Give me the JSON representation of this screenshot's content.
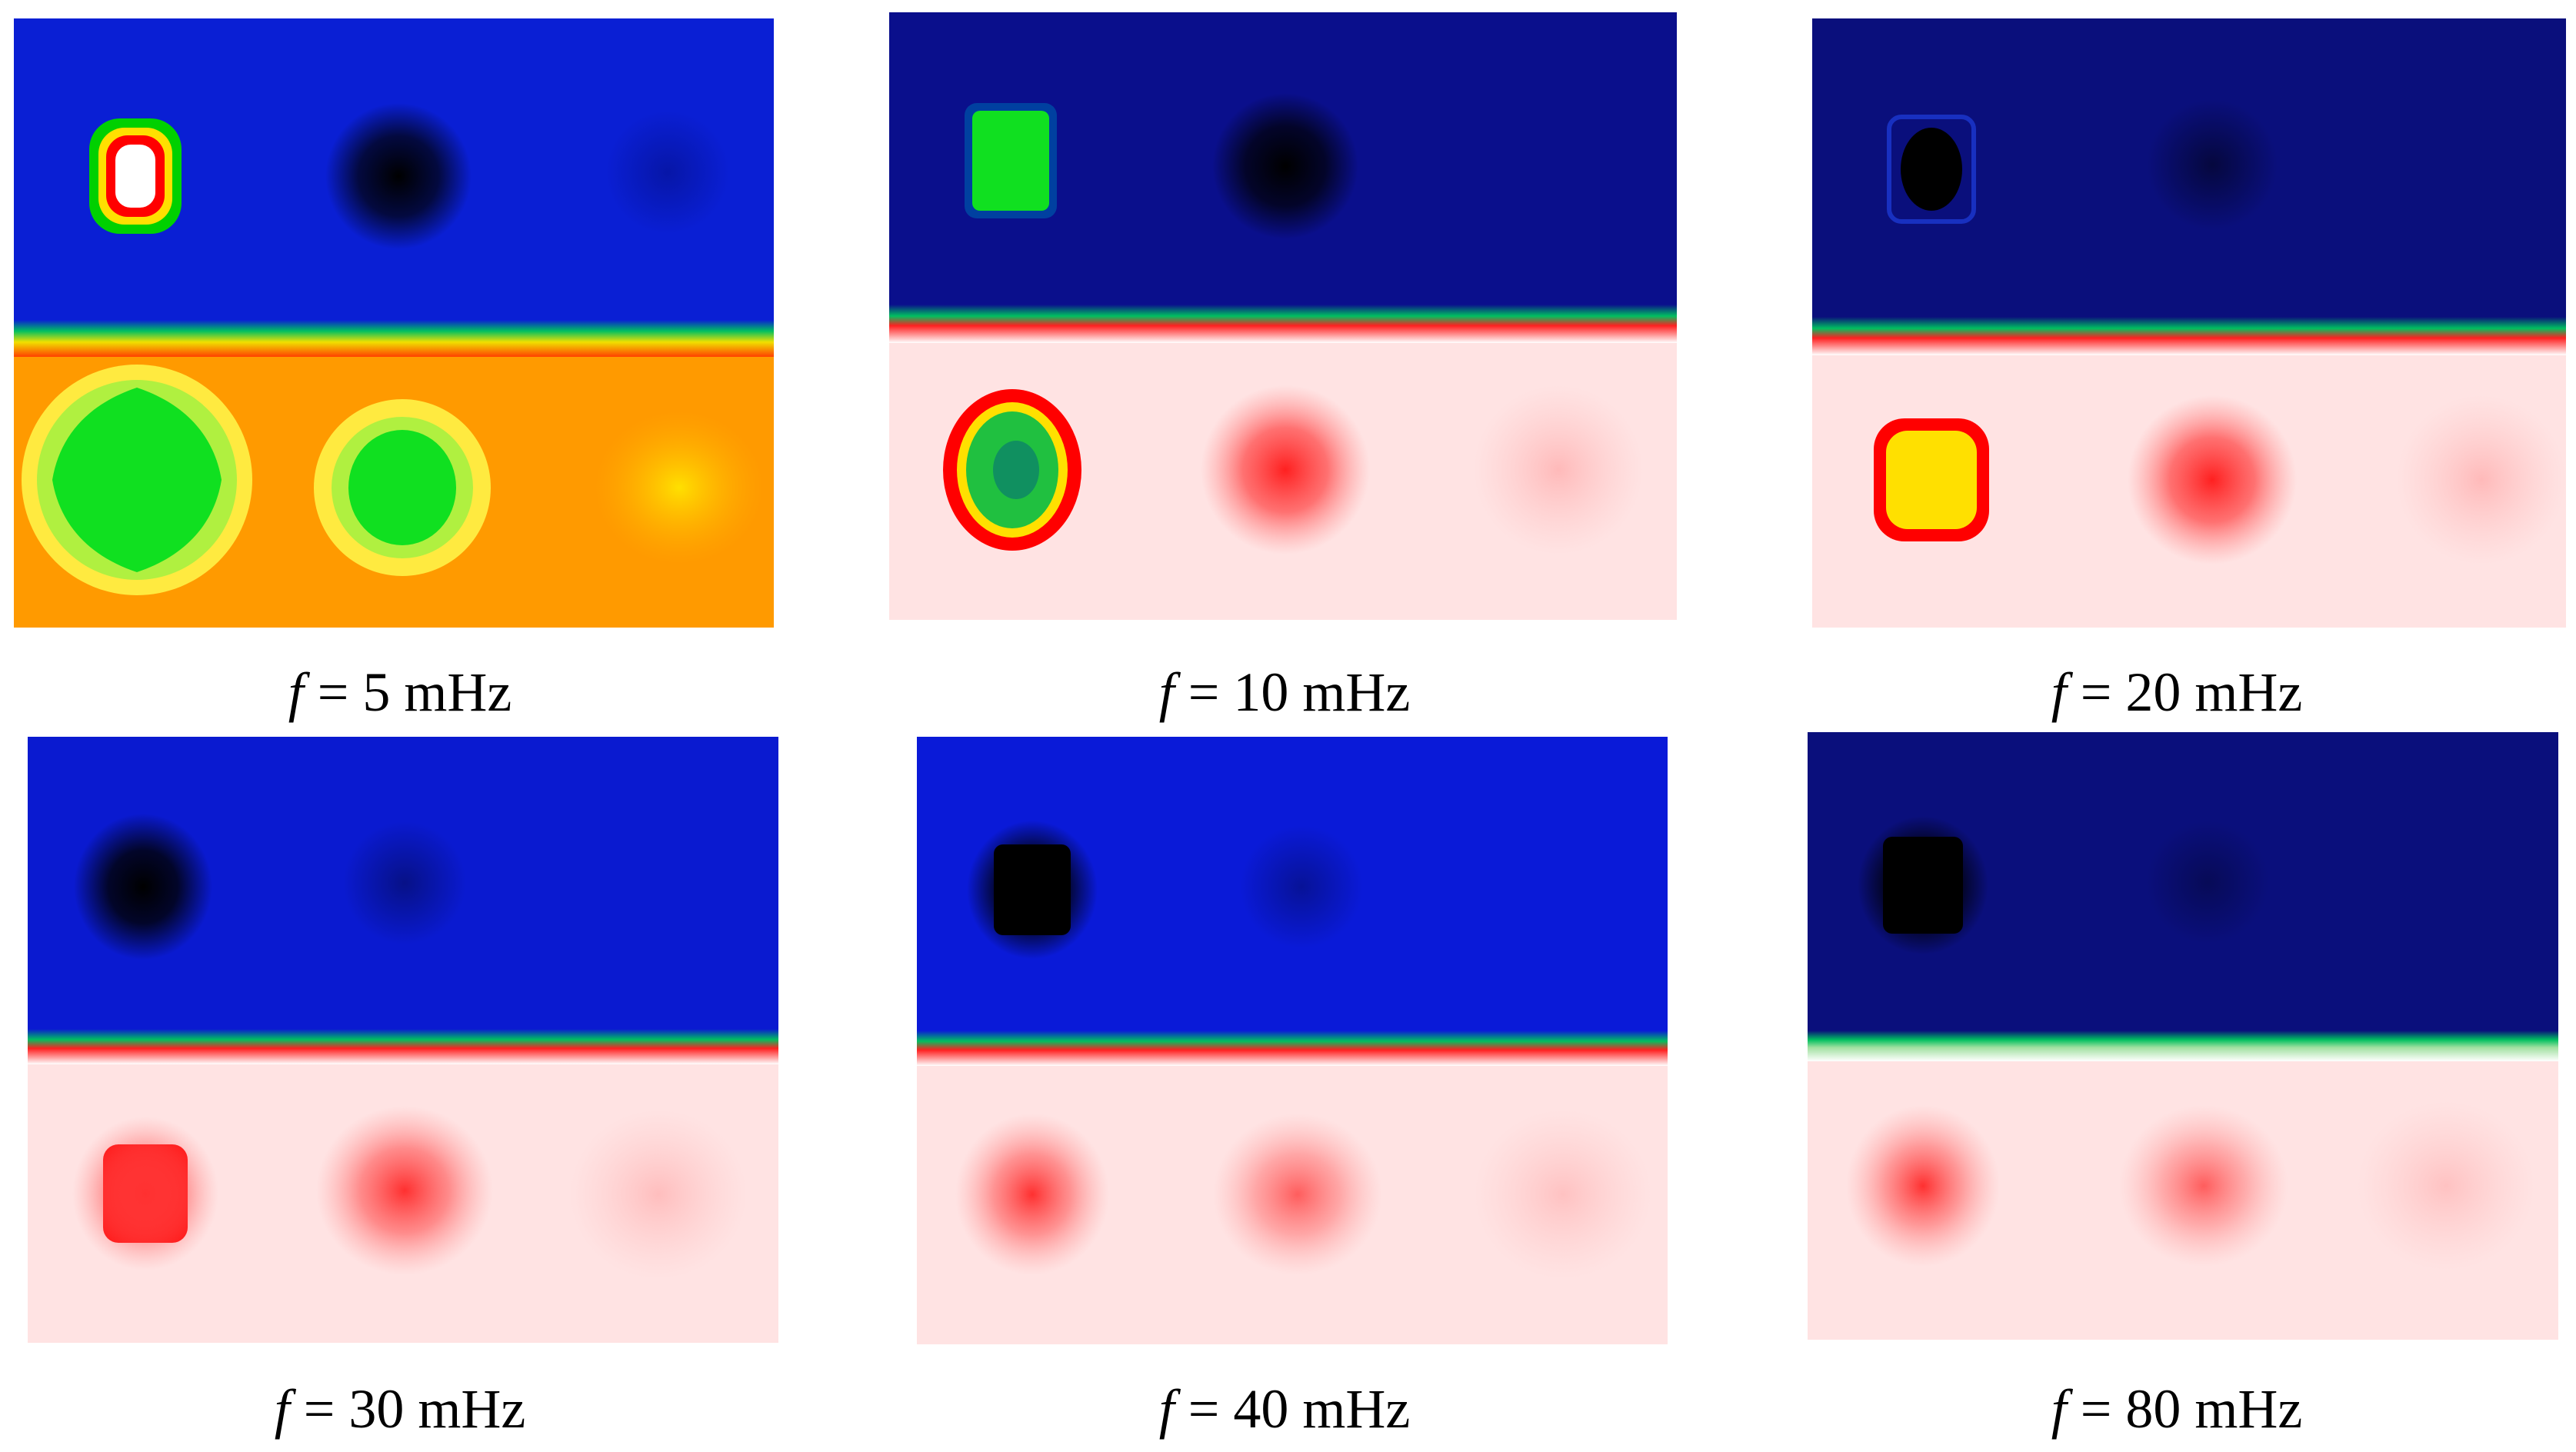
{
  "figure": {
    "panels": [
      {
        "id": "p1",
        "variable": "f",
        "equals": "=",
        "value": "5",
        "unit": "mHz",
        "top_color": "#0a1fd4",
        "bottom_color": "#ff9a00",
        "upper_scheme": "hot-anomaly",
        "lower_scheme": "green-anomalies"
      },
      {
        "id": "p2",
        "variable": "f",
        "equals": "=",
        "value": "10",
        "unit": "mHz",
        "top_color": "#0a0f8c",
        "bottom_color": "#ffe3e3",
        "upper_scheme": "green-anomaly",
        "lower_scheme": "ring-anomaly"
      },
      {
        "id": "p3",
        "variable": "f",
        "equals": "=",
        "value": "20",
        "unit": "mHz",
        "top_color": "#0a0f7c",
        "bottom_color": "#ffe3e3",
        "upper_scheme": "dark-anomaly",
        "lower_scheme": "yellow-anomaly"
      },
      {
        "id": "p4",
        "variable": "f",
        "equals": "=",
        "value": "30",
        "unit": "mHz",
        "top_color": "#0a1ad0",
        "bottom_color": "#ffe3e3",
        "upper_scheme": "dark-anomaly",
        "lower_scheme": "red-anomaly"
      },
      {
        "id": "p5",
        "variable": "f",
        "equals": "=",
        "value": "40",
        "unit": "mHz",
        "top_color": "#0a1ad8",
        "bottom_color": "#ffe3e3",
        "upper_scheme": "dark-anomaly",
        "lower_scheme": "red-anomaly"
      },
      {
        "id": "p6",
        "variable": "f",
        "equals": "=",
        "value": "80",
        "unit": "mHz",
        "top_color": "#0a0f7c",
        "bottom_color": "#ffe3e3",
        "upper_scheme": "dark-anomaly",
        "lower_scheme": "red-anomaly"
      }
    ]
  }
}
